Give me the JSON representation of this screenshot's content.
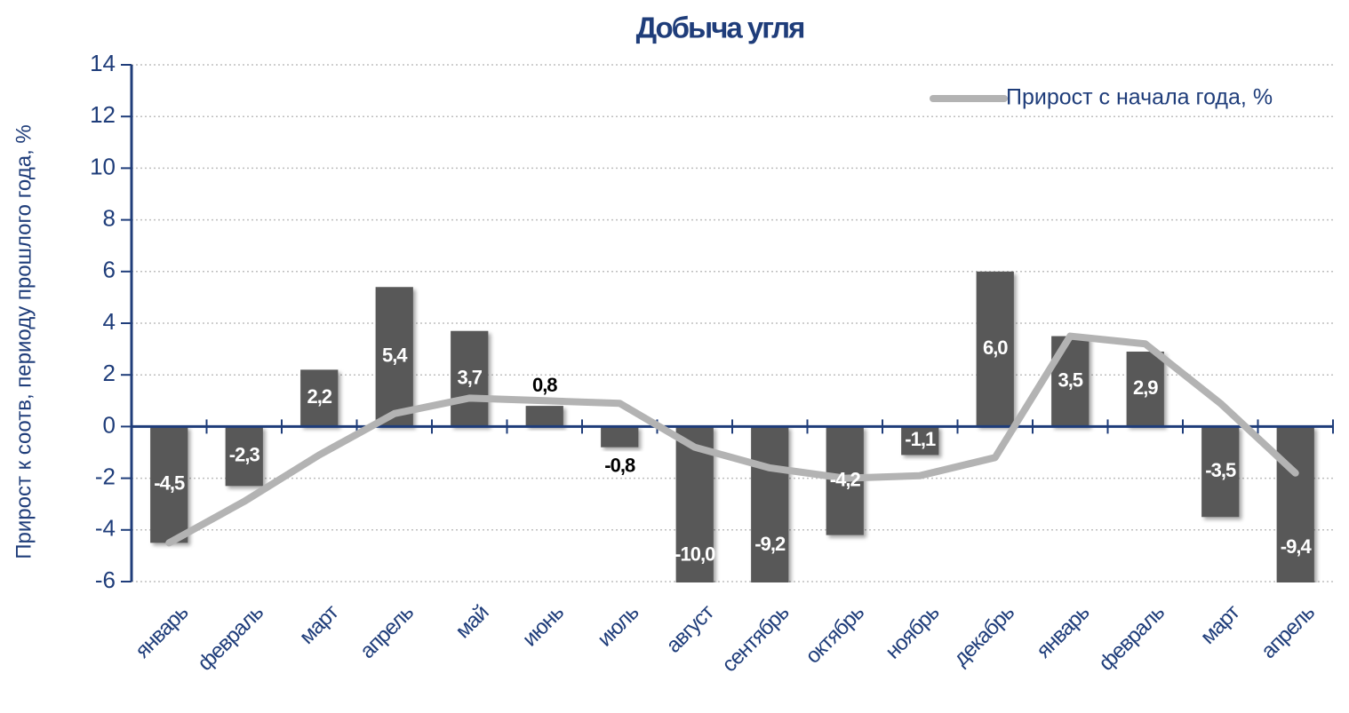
{
  "chart_data": {
    "type": "bar-line",
    "title": "Добыча угля",
    "y_axis_label": "Прирост к соотв, периоду прошлого года, %",
    "categories": [
      "январь",
      "февраль",
      "март",
      "апрель",
      "май",
      "июнь",
      "июль",
      "август",
      "сентябрь",
      "октябрь",
      "ноябрь",
      "декабрь",
      "январь",
      "февраль",
      "март",
      "апрель"
    ],
    "series": [
      {
        "type": "bar",
        "color": "#595959",
        "values": [
          -4.5,
          -2.3,
          2.2,
          5.4,
          3.7,
          0.8,
          -0.8,
          -10.0,
          -9.2,
          -4.2,
          -1.1,
          6.0,
          3.5,
          2.9,
          -3.5,
          -9.4
        ],
        "value_labels": [
          "-4,5",
          "-2,3",
          "2,2",
          "5,4",
          "3,7",
          "0,8",
          "-0,8",
          "-10,0",
          "-9,2",
          "-4,2",
          "-1,1",
          "6,0",
          "3,5",
          "2,9",
          "-3,5",
          "-9,4"
        ]
      },
      {
        "type": "line",
        "name": "Прирост с начала года, %",
        "color": "#b3b3b3",
        "values": [
          -4.5,
          -2.9,
          -1.1,
          0.5,
          1.1,
          1.0,
          0.9,
          -0.8,
          -1.6,
          -2.0,
          -1.9,
          -1.2,
          3.5,
          3.2,
          0.9,
          -1.8
        ]
      }
    ],
    "ylim": [
      -6,
      14
    ],
    "yticks": [
      -6,
      -4,
      -2,
      0,
      2,
      4,
      6,
      8,
      10,
      12,
      14
    ],
    "grid": true,
    "legend": "top-right"
  }
}
